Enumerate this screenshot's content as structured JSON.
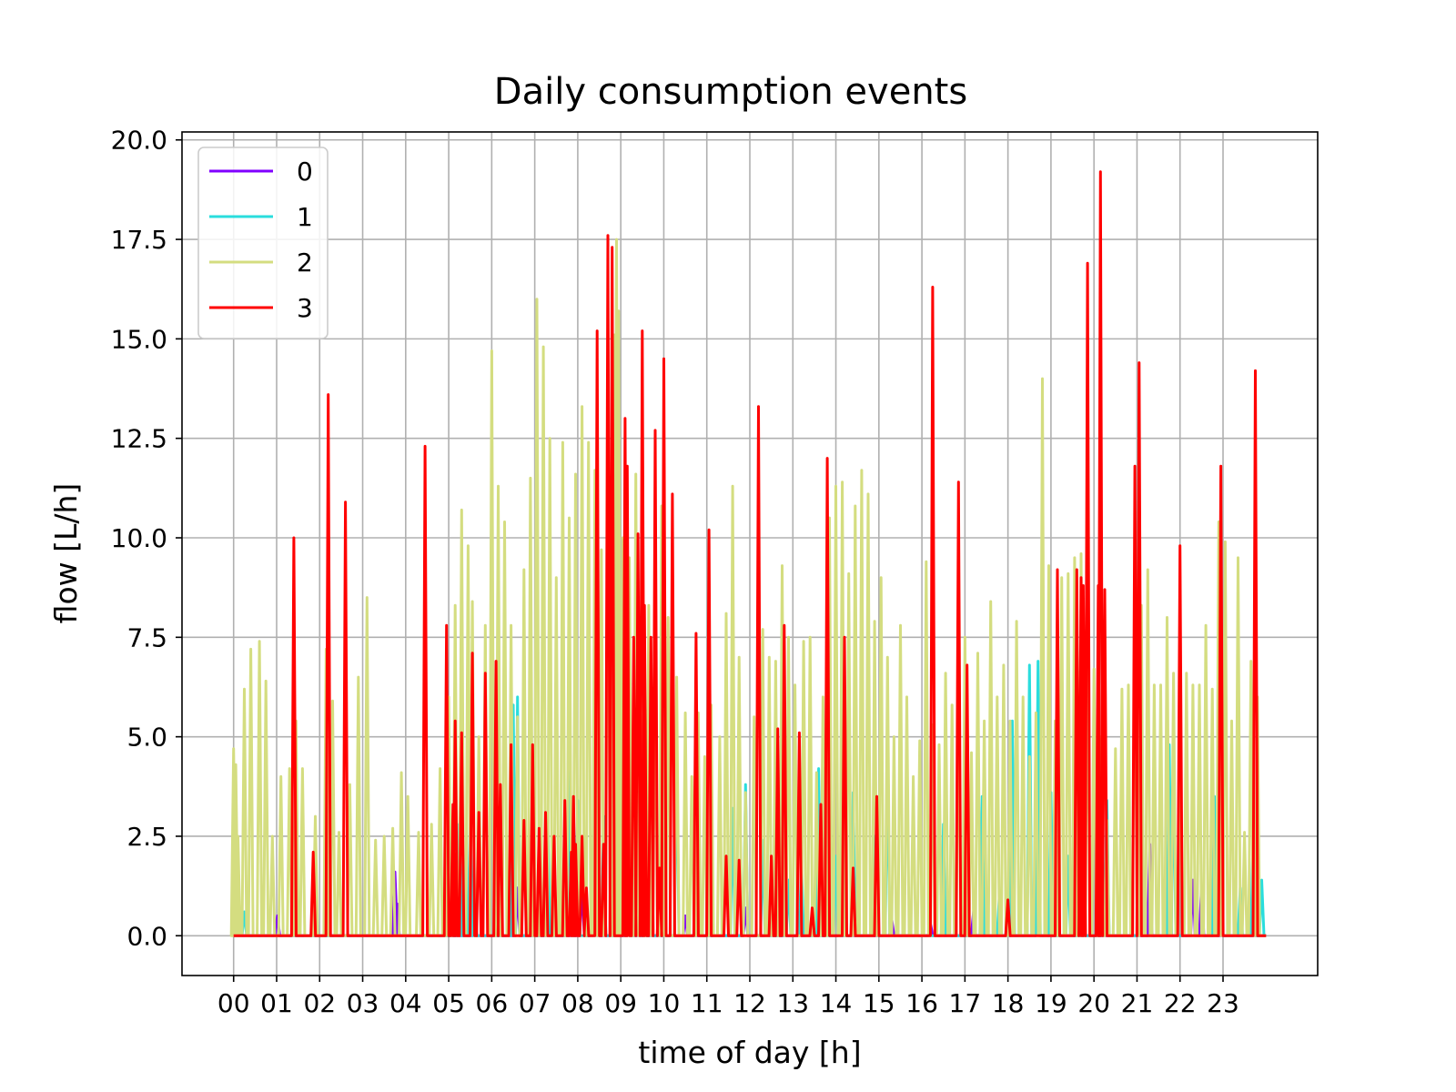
{
  "chart_data": {
    "type": "line",
    "title": "Daily consumption events",
    "xlabel": "time of day [h]",
    "ylabel": "flow [L/h]",
    "xlim": [
      -1.2,
      25.2
    ],
    "ylim": [
      -1.0,
      20.2
    ],
    "grid": true,
    "legend_position": "top-left",
    "x_ticks": [
      0,
      1,
      2,
      3,
      4,
      5,
      6,
      7,
      8,
      9,
      10,
      11,
      12,
      13,
      14,
      15,
      16,
      17,
      18,
      19,
      20,
      21,
      22,
      23
    ],
    "x_tick_labels": [
      "00",
      "01",
      "02",
      "03",
      "04",
      "05",
      "06",
      "07",
      "08",
      "09",
      "10",
      "11",
      "12",
      "13",
      "14",
      "15",
      "16",
      "17",
      "18",
      "19",
      "20",
      "21",
      "22",
      "23"
    ],
    "y_ticks": [
      0.0,
      2.5,
      5.0,
      7.5,
      10.0,
      12.5,
      15.0,
      17.5,
      20.0
    ],
    "y_tick_labels": [
      "0.0",
      "2.5",
      "5.0",
      "7.5",
      "10.0",
      "12.5",
      "15.0",
      "17.5",
      "20.0"
    ],
    "x_range": [
      0,
      24
    ],
    "series": [
      {
        "name": "0",
        "color": "#8000ff",
        "events": [
          [
            1.02,
            0.5
          ],
          [
            3.75,
            1.6
          ],
          [
            3.8,
            0.8
          ],
          [
            5.6,
            0.9
          ],
          [
            6.6,
            1.2
          ],
          [
            7.0,
            0.4
          ],
          [
            7.4,
            0.5
          ],
          [
            8.1,
            1.3
          ],
          [
            8.4,
            1.4
          ],
          [
            9.2,
            0.9
          ],
          [
            9.55,
            3.6
          ],
          [
            10.5,
            0.5
          ],
          [
            11.9,
            0.7
          ],
          [
            12.4,
            0.3
          ],
          [
            13.8,
            1.5
          ],
          [
            14.1,
            0.7
          ],
          [
            15.3,
            0.4
          ],
          [
            16.2,
            0.3
          ],
          [
            17.2,
            0.6
          ],
          [
            18.7,
            0.4
          ],
          [
            19.7,
            0.6
          ],
          [
            21.3,
            2.3
          ],
          [
            22.3,
            1.4
          ],
          [
            22.5,
            1.2
          ]
        ]
      },
      {
        "name": "1",
        "color": "#2adddd",
        "events": [
          [
            0.25,
            0.6
          ],
          [
            5.25,
            2.8
          ],
          [
            5.5,
            3.1
          ],
          [
            6.5,
            5.8
          ],
          [
            6.6,
            6.0
          ],
          [
            7.3,
            3.0
          ],
          [
            7.8,
            4.5
          ],
          [
            8.0,
            3.4
          ],
          [
            8.45,
            6.2
          ],
          [
            8.6,
            3.0
          ],
          [
            9.0,
            5.0
          ],
          [
            9.15,
            2.6
          ],
          [
            9.4,
            4.4
          ],
          [
            10.3,
            4.8
          ],
          [
            10.8,
            3.8
          ],
          [
            11.6,
            3.2
          ],
          [
            11.9,
            3.8
          ],
          [
            12.3,
            2.4
          ],
          [
            12.9,
            1.4
          ],
          [
            13.2,
            1.8
          ],
          [
            13.6,
            4.2
          ],
          [
            14.0,
            2.0
          ],
          [
            14.4,
            3.6
          ],
          [
            14.9,
            2.5
          ],
          [
            15.2,
            4.4
          ],
          [
            16.5,
            2.8
          ],
          [
            17.4,
            3.5
          ],
          [
            17.8,
            1.0
          ],
          [
            18.1,
            5.4
          ],
          [
            18.5,
            6.8
          ],
          [
            18.7,
            6.9
          ],
          [
            19.0,
            3.6
          ],
          [
            19.4,
            2.0
          ],
          [
            20.3,
            3.4
          ],
          [
            21.1,
            2.0
          ],
          [
            21.75,
            4.8
          ],
          [
            21.85,
            4.4
          ],
          [
            22.8,
            3.5
          ],
          [
            22.95,
            0.8
          ],
          [
            23.4,
            1.2
          ],
          [
            23.7,
            2.6
          ],
          [
            23.9,
            1.4
          ]
        ]
      },
      {
        "name": "2",
        "color": "#d4dd80",
        "events": [
          [
            0.0,
            4.7
          ],
          [
            0.05,
            4.3
          ],
          [
            0.1,
            2.5
          ],
          [
            0.25,
            6.2
          ],
          [
            0.4,
            7.2
          ],
          [
            0.6,
            7.4
          ],
          [
            0.75,
            6.4
          ],
          [
            0.9,
            2.5
          ],
          [
            1.1,
            4.0
          ],
          [
            1.3,
            4.2
          ],
          [
            1.45,
            5.4
          ],
          [
            1.6,
            4.2
          ],
          [
            1.9,
            3.0
          ],
          [
            2.15,
            7.2
          ],
          [
            2.3,
            5.9
          ],
          [
            2.45,
            2.6
          ],
          [
            2.7,
            3.8
          ],
          [
            2.9,
            6.5
          ],
          [
            3.1,
            8.5
          ],
          [
            3.3,
            2.4
          ],
          [
            3.5,
            2.5
          ],
          [
            3.7,
            2.7
          ],
          [
            3.9,
            4.1
          ],
          [
            4.05,
            3.5
          ],
          [
            4.3,
            2.6
          ],
          [
            4.6,
            2.8
          ],
          [
            4.8,
            4.2
          ],
          [
            5.0,
            6.0
          ],
          [
            5.15,
            8.3
          ],
          [
            5.3,
            10.7
          ],
          [
            5.45,
            9.8
          ],
          [
            5.55,
            8.4
          ],
          [
            5.7,
            5.0
          ],
          [
            5.85,
            7.8
          ],
          [
            6.0,
            14.7
          ],
          [
            6.15,
            11.3
          ],
          [
            6.3,
            10.4
          ],
          [
            6.45,
            7.8
          ],
          [
            6.6,
            5.5
          ],
          [
            6.75,
            9.2
          ],
          [
            6.9,
            11.5
          ],
          [
            7.05,
            16.0
          ],
          [
            7.2,
            14.8
          ],
          [
            7.35,
            12.5
          ],
          [
            7.5,
            9.0
          ],
          [
            7.65,
            12.4
          ],
          [
            7.8,
            10.5
          ],
          [
            7.95,
            11.6
          ],
          [
            8.1,
            13.3
          ],
          [
            8.25,
            12.4
          ],
          [
            8.4,
            11.7
          ],
          [
            8.55,
            9.7
          ],
          [
            8.7,
            14.3
          ],
          [
            8.85,
            15.1
          ],
          [
            8.9,
            17.5
          ],
          [
            8.95,
            15.7
          ],
          [
            9.05,
            10.0
          ],
          [
            9.2,
            9.5
          ],
          [
            9.35,
            11.6
          ],
          [
            9.5,
            8.5
          ],
          [
            9.65,
            8.3
          ],
          [
            9.8,
            7.3
          ],
          [
            9.95,
            10.8
          ],
          [
            10.1,
            8.0
          ],
          [
            10.3,
            6.5
          ],
          [
            10.5,
            5.6
          ],
          [
            10.65,
            4.0
          ],
          [
            10.8,
            5.6
          ],
          [
            10.95,
            4.5
          ],
          [
            11.1,
            5.8
          ],
          [
            11.3,
            5.0
          ],
          [
            11.45,
            8.1
          ],
          [
            11.6,
            11.3
          ],
          [
            11.75,
            7.0
          ],
          [
            11.9,
            3.6
          ],
          [
            12.1,
            5.5
          ],
          [
            12.3,
            7.7
          ],
          [
            12.45,
            7.0
          ],
          [
            12.6,
            6.9
          ],
          [
            12.75,
            9.3
          ],
          [
            12.9,
            7.5
          ],
          [
            13.05,
            6.3
          ],
          [
            13.25,
            7.4
          ],
          [
            13.4,
            7.5
          ],
          [
            13.55,
            4.1
          ],
          [
            13.7,
            6.0
          ],
          [
            13.85,
            10.5
          ],
          [
            14.0,
            11.3
          ],
          [
            14.15,
            11.4
          ],
          [
            14.3,
            9.1
          ],
          [
            14.45,
            10.8
          ],
          [
            14.6,
            11.7
          ],
          [
            14.75,
            11.1
          ],
          [
            14.9,
            7.9
          ],
          [
            15.05,
            9.0
          ],
          [
            15.2,
            7.0
          ],
          [
            15.35,
            5.0
          ],
          [
            15.5,
            7.8
          ],
          [
            15.65,
            6.0
          ],
          [
            15.8,
            4.0
          ],
          [
            15.95,
            4.9
          ],
          [
            16.1,
            9.4
          ],
          [
            16.25,
            5.3
          ],
          [
            16.4,
            4.8
          ],
          [
            16.55,
            6.6
          ],
          [
            16.7,
            5.8
          ],
          [
            16.85,
            6.6
          ],
          [
            17.0,
            7.5
          ],
          [
            17.15,
            4.6
          ],
          [
            17.3,
            7.1
          ],
          [
            17.45,
            5.4
          ],
          [
            17.6,
            8.4
          ],
          [
            17.75,
            6.0
          ],
          [
            17.9,
            6.8
          ],
          [
            18.05,
            5.4
          ],
          [
            18.2,
            7.9
          ],
          [
            18.35,
            6.0
          ],
          [
            18.5,
            4.5
          ],
          [
            18.65,
            5.6
          ],
          [
            18.8,
            14.0
          ],
          [
            18.95,
            9.3
          ],
          [
            19.1,
            5.4
          ],
          [
            19.25,
            9.0
          ],
          [
            19.4,
            9.1
          ],
          [
            19.55,
            9.5
          ],
          [
            19.7,
            9.6
          ],
          [
            19.85,
            8.0
          ],
          [
            20.0,
            6.7
          ],
          [
            20.15,
            5.0
          ],
          [
            20.3,
            2.9
          ],
          [
            20.5,
            4.7
          ],
          [
            20.65,
            6.2
          ],
          [
            20.8,
            6.3
          ],
          [
            20.95,
            9.2
          ],
          [
            21.1,
            8.3
          ],
          [
            21.25,
            9.2
          ],
          [
            21.4,
            6.3
          ],
          [
            21.55,
            6.3
          ],
          [
            21.7,
            8.0
          ],
          [
            21.85,
            6.6
          ],
          [
            22.0,
            6.2
          ],
          [
            22.15,
            6.6
          ],
          [
            22.3,
            6.3
          ],
          [
            22.45,
            6.3
          ],
          [
            22.6,
            7.8
          ],
          [
            22.75,
            6.2
          ],
          [
            22.9,
            10.4
          ],
          [
            23.05,
            9.9
          ],
          [
            23.2,
            5.4
          ],
          [
            23.35,
            9.5
          ],
          [
            23.5,
            2.6
          ],
          [
            23.65,
            6.9
          ],
          [
            23.8,
            6.0
          ]
        ]
      },
      {
        "name": "3",
        "color": "#ff0000",
        "events": [
          [
            1.4,
            10.0
          ],
          [
            1.85,
            2.1
          ],
          [
            2.2,
            13.6
          ],
          [
            2.6,
            10.9
          ],
          [
            4.45,
            12.3
          ],
          [
            4.95,
            7.8
          ],
          [
            5.1,
            3.3
          ],
          [
            5.15,
            5.4
          ],
          [
            5.3,
            5.1
          ],
          [
            5.55,
            7.1
          ],
          [
            5.7,
            3.1
          ],
          [
            5.85,
            6.6
          ],
          [
            6.1,
            6.9
          ],
          [
            6.2,
            3.8
          ],
          [
            6.45,
            4.8
          ],
          [
            6.75,
            2.9
          ],
          [
            6.95,
            4.8
          ],
          [
            7.1,
            2.7
          ],
          [
            7.25,
            3.1
          ],
          [
            7.45,
            2.5
          ],
          [
            7.7,
            3.4
          ],
          [
            7.85,
            2.1
          ],
          [
            7.9,
            3.5
          ],
          [
            7.95,
            2.3
          ],
          [
            8.1,
            2.5
          ],
          [
            8.2,
            1.2
          ],
          [
            8.45,
            15.2
          ],
          [
            8.6,
            2.3
          ],
          [
            8.7,
            17.6
          ],
          [
            8.8,
            17.3
          ],
          [
            9.1,
            13.0
          ],
          [
            9.15,
            11.8
          ],
          [
            9.3,
            7.5
          ],
          [
            9.4,
            10.1
          ],
          [
            9.5,
            15.2
          ],
          [
            9.55,
            8.3
          ],
          [
            9.7,
            7.5
          ],
          [
            9.8,
            12.7
          ],
          [
            9.9,
            1.7
          ],
          [
            10.0,
            14.5
          ],
          [
            10.2,
            11.1
          ],
          [
            10.75,
            7.6
          ],
          [
            11.05,
            10.2
          ],
          [
            11.45,
            2.0
          ],
          [
            11.75,
            1.9
          ],
          [
            12.2,
            13.3
          ],
          [
            12.5,
            2.0
          ],
          [
            12.65,
            5.2
          ],
          [
            12.8,
            7.8
          ],
          [
            13.15,
            5.1
          ],
          [
            13.45,
            0.7
          ],
          [
            13.65,
            3.3
          ],
          [
            13.8,
            12.0
          ],
          [
            14.2,
            7.5
          ],
          [
            14.4,
            1.7
          ],
          [
            14.95,
            3.5
          ],
          [
            16.25,
            16.3
          ],
          [
            16.85,
            11.4
          ],
          [
            17.05,
            6.8
          ],
          [
            18.0,
            0.9
          ],
          [
            19.15,
            9.2
          ],
          [
            19.6,
            9.2
          ],
          [
            19.7,
            9.0
          ],
          [
            19.75,
            8.8
          ],
          [
            19.85,
            16.9
          ],
          [
            20.1,
            8.8
          ],
          [
            20.15,
            19.2
          ],
          [
            20.25,
            8.7
          ],
          [
            20.95,
            11.8
          ],
          [
            21.05,
            14.4
          ],
          [
            22.0,
            9.8
          ],
          [
            22.95,
            11.8
          ],
          [
            23.75,
            14.2
          ]
        ]
      }
    ]
  }
}
